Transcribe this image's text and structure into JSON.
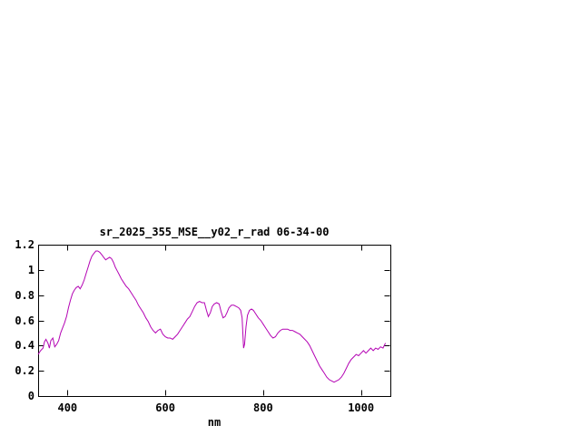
{
  "window": {
    "background": "#ffffff"
  },
  "chart_data": {
    "type": "line",
    "title": "sr_2025_355_MSE__y02_r_rad 06-34-00",
    "xlabel": "nm",
    "ylabel": "",
    "grid": false,
    "legend_position": "none",
    "line_color": "#b404b4",
    "axis_color": "#000000",
    "xlim": [
      340,
      1060
    ],
    "ylim": [
      0,
      1.2
    ],
    "xticks": [
      {
        "v": 400,
        "label": "400"
      },
      {
        "v": 600,
        "label": "600"
      },
      {
        "v": 800,
        "label": "800"
      },
      {
        "v": 1000,
        "label": "1000"
      }
    ],
    "yticks": [
      {
        "v": 1.2,
        "label": "1.2"
      },
      {
        "v": 1.0,
        "label": "1"
      },
      {
        "v": 0.8,
        "label": "0.8"
      },
      {
        "v": 0.6,
        "label": "0.6"
      },
      {
        "v": 0.4,
        "label": "0.4"
      },
      {
        "v": 0.2,
        "label": "0.2"
      },
      {
        "v": 0.0,
        "label": "0"
      }
    ],
    "series": [
      {
        "name": "sr_2025_355_MSE__y02_r_rad",
        "points": [
          [
            340,
            0.33
          ],
          [
            345,
            0.36
          ],
          [
            350,
            0.38
          ],
          [
            353,
            0.43
          ],
          [
            356,
            0.45
          ],
          [
            360,
            0.42
          ],
          [
            363,
            0.38
          ],
          [
            366,
            0.44
          ],
          [
            370,
            0.46
          ],
          [
            374,
            0.39
          ],
          [
            378,
            0.41
          ],
          [
            382,
            0.44
          ],
          [
            386,
            0.5
          ],
          [
            390,
            0.54
          ],
          [
            394,
            0.58
          ],
          [
            398,
            0.63
          ],
          [
            402,
            0.7
          ],
          [
            406,
            0.76
          ],
          [
            410,
            0.81
          ],
          [
            414,
            0.84
          ],
          [
            418,
            0.86
          ],
          [
            422,
            0.87
          ],
          [
            426,
            0.85
          ],
          [
            430,
            0.88
          ],
          [
            434,
            0.92
          ],
          [
            438,
            0.97
          ],
          [
            442,
            1.02
          ],
          [
            446,
            1.07
          ],
          [
            450,
            1.11
          ],
          [
            454,
            1.13
          ],
          [
            458,
            1.15
          ],
          [
            462,
            1.15
          ],
          [
            466,
            1.14
          ],
          [
            470,
            1.12
          ],
          [
            474,
            1.1
          ],
          [
            478,
            1.08
          ],
          [
            482,
            1.09
          ],
          [
            486,
            1.1
          ],
          [
            490,
            1.09
          ],
          [
            494,
            1.06
          ],
          [
            498,
            1.02
          ],
          [
            502,
            0.99
          ],
          [
            506,
            0.96
          ],
          [
            510,
            0.93
          ],
          [
            515,
            0.9
          ],
          [
            520,
            0.87
          ],
          [
            525,
            0.85
          ],
          [
            530,
            0.82
          ],
          [
            535,
            0.79
          ],
          [
            540,
            0.76
          ],
          [
            545,
            0.72
          ],
          [
            550,
            0.69
          ],
          [
            555,
            0.66
          ],
          [
            560,
            0.62
          ],
          [
            565,
            0.59
          ],
          [
            570,
            0.55
          ],
          [
            575,
            0.52
          ],
          [
            580,
            0.5
          ],
          [
            585,
            0.52
          ],
          [
            590,
            0.53
          ],
          [
            595,
            0.49
          ],
          [
            600,
            0.47
          ],
          [
            605,
            0.46
          ],
          [
            610,
            0.46
          ],
          [
            615,
            0.45
          ],
          [
            620,
            0.47
          ],
          [
            625,
            0.49
          ],
          [
            630,
            0.52
          ],
          [
            635,
            0.55
          ],
          [
            640,
            0.58
          ],
          [
            645,
            0.61
          ],
          [
            650,
            0.63
          ],
          [
            655,
            0.67
          ],
          [
            660,
            0.71
          ],
          [
            665,
            0.74
          ],
          [
            670,
            0.75
          ],
          [
            675,
            0.74
          ],
          [
            680,
            0.74
          ],
          [
            684,
            0.68
          ],
          [
            688,
            0.63
          ],
          [
            692,
            0.66
          ],
          [
            696,
            0.71
          ],
          [
            700,
            0.73
          ],
          [
            705,
            0.74
          ],
          [
            710,
            0.73
          ],
          [
            714,
            0.67
          ],
          [
            718,
            0.62
          ],
          [
            722,
            0.63
          ],
          [
            726,
            0.66
          ],
          [
            730,
            0.7
          ],
          [
            735,
            0.72
          ],
          [
            740,
            0.72
          ],
          [
            745,
            0.71
          ],
          [
            750,
            0.7
          ],
          [
            754,
            0.68
          ],
          [
            757,
            0.62
          ],
          [
            760,
            0.38
          ],
          [
            762,
            0.41
          ],
          [
            765,
            0.55
          ],
          [
            768,
            0.64
          ],
          [
            772,
            0.68
          ],
          [
            776,
            0.69
          ],
          [
            780,
            0.68
          ],
          [
            785,
            0.65
          ],
          [
            790,
            0.62
          ],
          [
            795,
            0.6
          ],
          [
            800,
            0.57
          ],
          [
            805,
            0.54
          ],
          [
            810,
            0.51
          ],
          [
            815,
            0.48
          ],
          [
            820,
            0.46
          ],
          [
            825,
            0.47
          ],
          [
            830,
            0.5
          ],
          [
            835,
            0.52
          ],
          [
            840,
            0.53
          ],
          [
            845,
            0.53
          ],
          [
            850,
            0.53
          ],
          [
            855,
            0.52
          ],
          [
            860,
            0.52
          ],
          [
            865,
            0.51
          ],
          [
            870,
            0.5
          ],
          [
            875,
            0.49
          ],
          [
            880,
            0.47
          ],
          [
            885,
            0.45
          ],
          [
            890,
            0.43
          ],
          [
            895,
            0.4
          ],
          [
            900,
            0.36
          ],
          [
            905,
            0.32
          ],
          [
            910,
            0.28
          ],
          [
            915,
            0.24
          ],
          [
            920,
            0.21
          ],
          [
            925,
            0.18
          ],
          [
            930,
            0.15
          ],
          [
            935,
            0.13
          ],
          [
            940,
            0.12
          ],
          [
            945,
            0.11
          ],
          [
            950,
            0.12
          ],
          [
            955,
            0.13
          ],
          [
            960,
            0.15
          ],
          [
            965,
            0.18
          ],
          [
            970,
            0.22
          ],
          [
            975,
            0.26
          ],
          [
            980,
            0.29
          ],
          [
            985,
            0.31
          ],
          [
            990,
            0.33
          ],
          [
            995,
            0.32
          ],
          [
            1000,
            0.34
          ],
          [
            1005,
            0.36
          ],
          [
            1010,
            0.34
          ],
          [
            1015,
            0.36
          ],
          [
            1020,
            0.38
          ],
          [
            1025,
            0.36
          ],
          [
            1030,
            0.38
          ],
          [
            1035,
            0.37
          ],
          [
            1040,
            0.39
          ],
          [
            1045,
            0.38
          ],
          [
            1050,
            0.42
          ]
        ]
      }
    ]
  }
}
